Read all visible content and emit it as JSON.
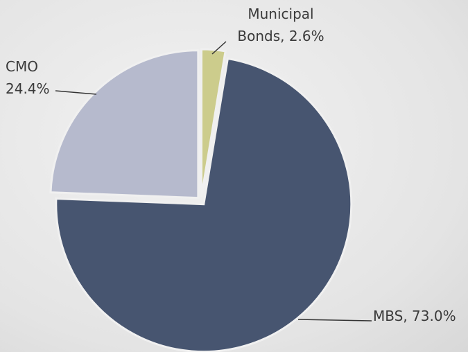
{
  "chart_data": {
    "type": "pie",
    "categories": [
      "Municipal Bonds",
      "MBS",
      "CMO"
    ],
    "values": [
      2.6,
      73.0,
      24.4
    ],
    "value_labels": [
      "2.6%",
      "73.0%",
      "24.4%"
    ],
    "colors": [
      "#cccc8c",
      "#475570",
      "#b6bacd"
    ],
    "start_angle": 0,
    "direction": "clockwise",
    "exploded": true
  }
}
